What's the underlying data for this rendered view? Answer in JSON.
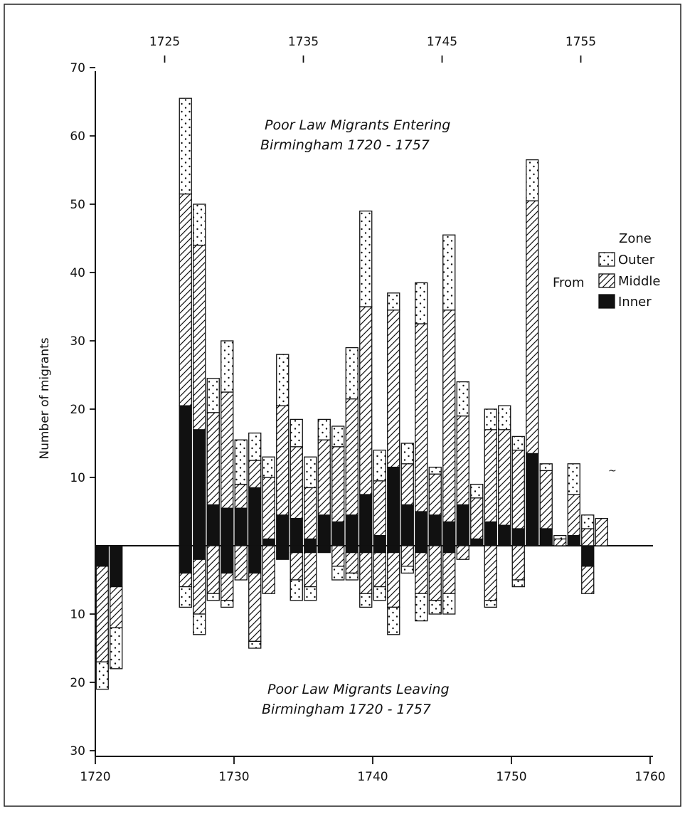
{
  "chart_data": {
    "type": "bar",
    "title_top": [
      "Poor Law Migrants Entering",
      "Birmingham 1720 - 1757"
    ],
    "title_bottom": [
      "Poor Law Migrants Leaving",
      "Birmingham 1720 - 1757"
    ],
    "ylabel": "Number of migrants",
    "x_ticks_bottom": [
      "1720",
      "1730",
      "1740",
      "1750",
      "1760"
    ],
    "x_ticks_top": [
      "1725",
      "1735",
      "1745",
      "1755"
    ],
    "y_ticks_up": [
      "10",
      "20",
      "30",
      "40",
      "50",
      "60",
      "70"
    ],
    "y_ticks_down": [
      "10",
      "20",
      "30"
    ],
    "xlim": [
      1720,
      1760
    ],
    "ylim": [
      -30,
      70
    ],
    "legend": {
      "title": "Zone",
      "from_label": "From",
      "position": "right",
      "items": [
        {
          "label": "Outer",
          "pattern": "dots"
        },
        {
          "label": "Middle",
          "pattern": "hatch"
        },
        {
          "label": "Inner",
          "pattern": "solid"
        }
      ]
    },
    "entering": [
      {
        "x": 1726.5,
        "inner": 20.5,
        "middle": 31,
        "outer": 14
      },
      {
        "x": 1727.5,
        "inner": 17,
        "middle": 27,
        "outer": 6
      },
      {
        "x": 1728.5,
        "inner": 6,
        "middle": 13.5,
        "outer": 5
      },
      {
        "x": 1729.5,
        "inner": 5.5,
        "middle": 17,
        "outer": 7.5
      },
      {
        "x": 1730.5,
        "inner": 5.5,
        "middle": 3.5,
        "outer": 6.5
      },
      {
        "x": 1731.5,
        "inner": 8.5,
        "middle": 4,
        "outer": 4
      },
      {
        "x": 1732.5,
        "inner": 1,
        "middle": 9,
        "outer": 3
      },
      {
        "x": 1733.5,
        "inner": 4.5,
        "middle": 16,
        "outer": 7.5
      },
      {
        "x": 1734.5,
        "inner": 4,
        "middle": 10.5,
        "outer": 4
      },
      {
        "x": 1735.5,
        "inner": 1,
        "middle": 7.5,
        "outer": 4.5
      },
      {
        "x": 1736.5,
        "inner": 4.5,
        "middle": 11,
        "outer": 3
      },
      {
        "x": 1737.5,
        "inner": 3.5,
        "middle": 11,
        "outer": 3
      },
      {
        "x": 1738.5,
        "inner": 4.5,
        "middle": 17,
        "outer": 7.5
      },
      {
        "x": 1739.5,
        "inner": 7.5,
        "middle": 27.5,
        "outer": 14
      },
      {
        "x": 1740.5,
        "inner": 1.5,
        "middle": 8,
        "outer": 4.5
      },
      {
        "x": 1741.5,
        "inner": 11.5,
        "middle": 23,
        "outer": 2.5
      },
      {
        "x": 1742.5,
        "inner": 6,
        "middle": 6,
        "outer": 3
      },
      {
        "x": 1743.5,
        "inner": 5,
        "middle": 27.5,
        "outer": 6
      },
      {
        "x": 1744.5,
        "inner": 4.5,
        "middle": 6,
        "outer": 1
      },
      {
        "x": 1745.5,
        "inner": 3.5,
        "middle": 31,
        "outer": 11
      },
      {
        "x": 1746.5,
        "inner": 6,
        "middle": 13,
        "outer": 5
      },
      {
        "x": 1747.5,
        "inner": 1,
        "middle": 6,
        "outer": 2
      },
      {
        "x": 1748.5,
        "inner": 3.5,
        "middle": 13.5,
        "outer": 3
      },
      {
        "x": 1749.5,
        "inner": 3,
        "middle": 14,
        "outer": 3.5
      },
      {
        "x": 1750.5,
        "inner": 2.5,
        "middle": 11.5,
        "outer": 2
      },
      {
        "x": 1751.5,
        "inner": 13.5,
        "middle": 37,
        "outer": 6
      },
      {
        "x": 1752.5,
        "inner": 2.5,
        "middle": 8.5,
        "outer": 1
      },
      {
        "x": 1753.5,
        "inner": 0,
        "middle": 1,
        "outer": 0.5
      },
      {
        "x": 1754.5,
        "inner": 1.5,
        "middle": 6,
        "outer": 4.5
      },
      {
        "x": 1755.5,
        "inner": 0,
        "middle": 2.5,
        "outer": 2
      },
      {
        "x": 1756.5,
        "inner": 0,
        "middle": 4,
        "outer": 0
      }
    ],
    "leaving": [
      {
        "x": 1720.5,
        "inner": 3,
        "middle": 14,
        "outer": 4
      },
      {
        "x": 1721.5,
        "inner": 6,
        "middle": 6,
        "outer": 6
      },
      {
        "x": 1726.5,
        "inner": 4,
        "middle": 2,
        "outer": 3
      },
      {
        "x": 1727.5,
        "inner": 2,
        "middle": 8,
        "outer": 3
      },
      {
        "x": 1728.5,
        "inner": 0,
        "middle": 7,
        "outer": 1
      },
      {
        "x": 1729.5,
        "inner": 4,
        "middle": 4,
        "outer": 1
      },
      {
        "x": 1730.5,
        "inner": 0,
        "middle": 5,
        "outer": 0
      },
      {
        "x": 1731.5,
        "inner": 4,
        "middle": 10,
        "outer": 1
      },
      {
        "x": 1732.5,
        "inner": 0,
        "middle": 7,
        "outer": 0
      },
      {
        "x": 1733.5,
        "inner": 2,
        "middle": 0,
        "outer": 0
      },
      {
        "x": 1734.5,
        "inner": 1,
        "middle": 4,
        "outer": 3
      },
      {
        "x": 1735.5,
        "inner": 1,
        "middle": 5,
        "outer": 2
      },
      {
        "x": 1736.5,
        "inner": 1,
        "middle": 0,
        "outer": 0
      },
      {
        "x": 1737.5,
        "inner": 0,
        "middle": 3,
        "outer": 2
      },
      {
        "x": 1738.5,
        "inner": 1,
        "middle": 3,
        "outer": 1
      },
      {
        "x": 1739.5,
        "inner": 1,
        "middle": 6,
        "outer": 2
      },
      {
        "x": 1740.5,
        "inner": 1,
        "middle": 5,
        "outer": 2
      },
      {
        "x": 1741.5,
        "inner": 1,
        "middle": 8,
        "outer": 4
      },
      {
        "x": 1742.5,
        "inner": 0,
        "middle": 3,
        "outer": 1
      },
      {
        "x": 1743.5,
        "inner": 1,
        "middle": 6,
        "outer": 4
      },
      {
        "x": 1744.5,
        "inner": 0,
        "middle": 8,
        "outer": 2
      },
      {
        "x": 1745.5,
        "inner": 1,
        "middle": 6,
        "outer": 3
      },
      {
        "x": 1746.5,
        "inner": 0,
        "middle": 2,
        "outer": 0
      },
      {
        "x": 1748.5,
        "inner": 0,
        "middle": 8,
        "outer": 1
      },
      {
        "x": 1750.5,
        "inner": 0,
        "middle": 5,
        "outer": 1
      },
      {
        "x": 1755.5,
        "inner": 3,
        "middle": 4,
        "outer": 0
      }
    ]
  }
}
